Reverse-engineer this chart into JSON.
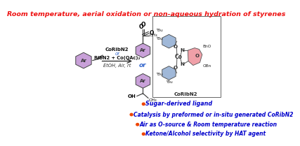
{
  "title": "Room temperature, aerial oxidation or non-aqueous hydration of styrenes",
  "title_color": "#EE1111",
  "bg_color": "#FFFFFF",
  "bullet_color": "#EE4400",
  "text_color": "#0000CC",
  "bullets": [
    "Sugar-derived ligand",
    "Catalysis by preformed or in-situ generated CoRibN2",
    "Air as O-source & Room temperature reaction",
    "Ketone/Alcohol selectivity by HAT agent"
  ],
  "conditions": [
    "CoRibN2",
    "or",
    "RibN2 + Co(OAc)₂",
    "EtOH, Air, rt"
  ],
  "aryl_color": "#C8A0D8",
  "aryl_color2": "#A0B8D8",
  "sugar_color": "#F0A0A8",
  "box_color": "#CCCCCC"
}
